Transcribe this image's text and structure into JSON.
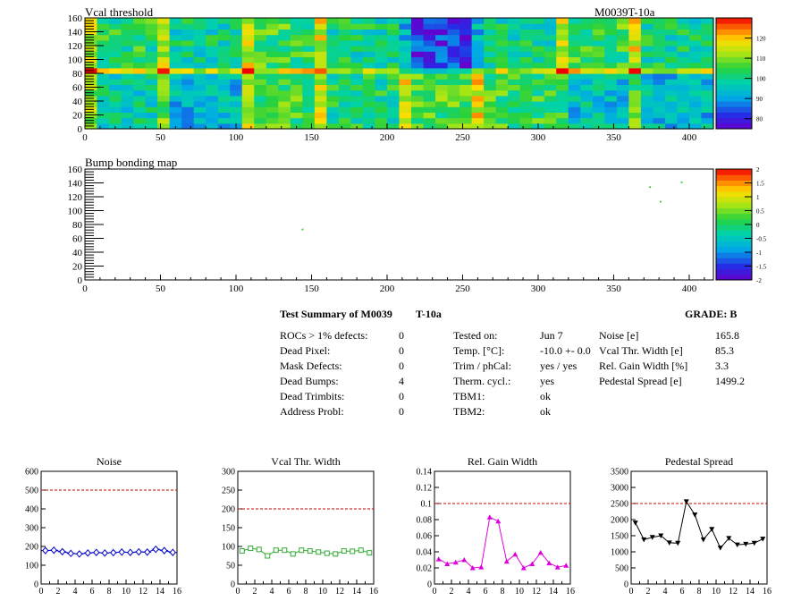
{
  "maps": [
    {
      "title": "Vcal threshold",
      "label": "M0039T-10a",
      "xticks": [
        "0",
        "50",
        "100",
        "150",
        "200",
        "250",
        "300",
        "350",
        "400"
      ],
      "yticks": [
        "0",
        "20",
        "40",
        "60",
        "80",
        "100",
        "120",
        "140",
        "160"
      ],
      "x_range": [
        0,
        416
      ],
      "y_range": [
        0,
        160
      ],
      "palette_ticks": [
        "80",
        "90",
        "100",
        "110",
        "120"
      ]
    },
    {
      "title": "Bump bonding map",
      "label": "",
      "xticks": [
        "0",
        "50",
        "100",
        "150",
        "200",
        "250",
        "300",
        "350",
        "400"
      ],
      "yticks": [
        "0",
        "20",
        "40",
        "60",
        "80",
        "100",
        "120",
        "140",
        "160"
      ],
      "x_range": [
        0,
        416
      ],
      "y_range": [
        0,
        160
      ],
      "palette_ticks": [
        "-2",
        "-1.5",
        "-1",
        "-0.5",
        "0",
        "0.5",
        "1",
        "1.5",
        "2"
      ]
    }
  ],
  "summary": {
    "title_left": "Test Summary of M0039",
    "title_mid": "T-10a",
    "grade": "GRADE:  B",
    "col1": [
      {
        "label": "ROCs > 1% defects:",
        "value": "0"
      },
      {
        "label": "Dead Pixel:",
        "value": "0"
      },
      {
        "label": "Mask Defects:",
        "value": "0"
      },
      {
        "label": "Dead Bumps:",
        "value": "4"
      },
      {
        "label": "Dead Trimbits:",
        "value": "0"
      },
      {
        "label": "Address Probl:",
        "value": "0"
      }
    ],
    "col2": [
      {
        "label": "Tested on:",
        "value": "Jun 7"
      },
      {
        "label": "Temp. [°C]:",
        "value": "-10.0 +- 0.0"
      },
      {
        "label": "Trim / phCal:",
        "value": "yes / yes"
      },
      {
        "label": "Therm. cycl.:",
        "value": "yes"
      },
      {
        "label": "TBM1:",
        "value": "ok"
      },
      {
        "label": "TBM2:",
        "value": "ok"
      }
    ],
    "col3": [
      {
        "label": "Noise [e]",
        "value": "165.8"
      },
      {
        "label": "Vcal Thr. Width [e]",
        "value": "85.3"
      },
      {
        "label": "Rel. Gain Width [%]",
        "value": "3.3"
      },
      {
        "label": "Pedestal Spread [e]",
        "value": "1499.2"
      }
    ]
  },
  "colors": {
    "noise": "#0000cc",
    "vcal": "#33aa33",
    "gain": "#dd00dd",
    "pedestal": "#000000",
    "limit": "#cc0000"
  },
  "chart_data": [
    {
      "type": "heatmap",
      "title": "Vcal threshold",
      "x_range": [
        0,
        416
      ],
      "y_range": [
        0,
        160
      ],
      "z_range": [
        78,
        128
      ],
      "roc_means_top": [
        103,
        100,
        105,
        101,
        84,
        101,
        105,
        101
      ],
      "roc_means_bottom": [
        99,
        94,
        105,
        102,
        106,
        105,
        96,
        95
      ]
    },
    {
      "type": "scatter",
      "title": "Bump bonding map",
      "x_range": [
        0,
        416
      ],
      "y_range": [
        0,
        160
      ],
      "x": [
        144,
        374,
        381,
        395
      ],
      "y": [
        73,
        134,
        113,
        141
      ]
    },
    {
      "type": "line",
      "title": "Noise",
      "x": [
        0,
        1,
        2,
        3,
        4,
        5,
        6,
        7,
        8,
        9,
        10,
        11,
        12,
        13,
        14,
        15
      ],
      "y": [
        178,
        180,
        172,
        163,
        160,
        165,
        168,
        165,
        167,
        170,
        168,
        171,
        170,
        185,
        178,
        168
      ],
      "xlim": [
        0,
        16
      ],
      "ylim": [
        0,
        600
      ],
      "xticks": [
        "0",
        "2",
        "4",
        "6",
        "8",
        "10",
        "12",
        "14",
        "16"
      ],
      "yticks": [
        "0",
        "100",
        "200",
        "300",
        "400",
        "500",
        "600"
      ],
      "limit": 500,
      "marker": "diamond"
    },
    {
      "type": "line",
      "title": "Vcal Thr. Width",
      "x": [
        0,
        1,
        2,
        3,
        4,
        5,
        6,
        7,
        8,
        9,
        10,
        11,
        12,
        13,
        14,
        15
      ],
      "y": [
        88,
        95,
        92,
        75,
        90,
        90,
        80,
        90,
        88,
        85,
        82,
        80,
        88,
        87,
        90,
        83
      ],
      "xlim": [
        0,
        16
      ],
      "ylim": [
        0,
        300
      ],
      "xticks": [
        "0",
        "2",
        "4",
        "6",
        "8",
        "10",
        "12",
        "14",
        "16"
      ],
      "yticks": [
        "0",
        "50",
        "100",
        "150",
        "200",
        "250",
        "300"
      ],
      "limit": 200,
      "marker": "square"
    },
    {
      "type": "line",
      "title": "Rel. Gain Width",
      "x": [
        0,
        1,
        2,
        3,
        4,
        5,
        6,
        7,
        8,
        9,
        10,
        11,
        12,
        13,
        14,
        15
      ],
      "y": [
        0.031,
        0.025,
        0.027,
        0.03,
        0.02,
        0.021,
        0.083,
        0.078,
        0.028,
        0.037,
        0.02,
        0.025,
        0.039,
        0.026,
        0.021,
        0.023
      ],
      "xlim": [
        0,
        16
      ],
      "ylim": [
        0,
        0.14
      ],
      "xticks": [
        "0",
        "2",
        "4",
        "6",
        "8",
        "10",
        "12",
        "14",
        "16"
      ],
      "yticks": [
        "0",
        "0.02",
        "0.04",
        "0.06",
        "0.08",
        "0.1",
        "0.12",
        "0.14"
      ],
      "limit": 0.1,
      "marker": "triangle"
    },
    {
      "type": "line",
      "title": "Pedestal Spread",
      "x": [
        0,
        1,
        2,
        3,
        4,
        5,
        6,
        7,
        8,
        9,
        10,
        11,
        12,
        13,
        14,
        15
      ],
      "y": [
        1900,
        1380,
        1450,
        1500,
        1280,
        1270,
        2560,
        2150,
        1380,
        1700,
        1120,
        1420,
        1220,
        1240,
        1270,
        1400
      ],
      "xlim": [
        0,
        16
      ],
      "ylim": [
        0,
        3500
      ],
      "xticks": [
        "0",
        "2",
        "4",
        "6",
        "8",
        "10",
        "12",
        "14",
        "16"
      ],
      "yticks": [
        "0",
        "500",
        "1000",
        "1500",
        "2000",
        "2500",
        "3000",
        "3500"
      ],
      "limit": 2500,
      "marker": "triangle-down"
    }
  ]
}
